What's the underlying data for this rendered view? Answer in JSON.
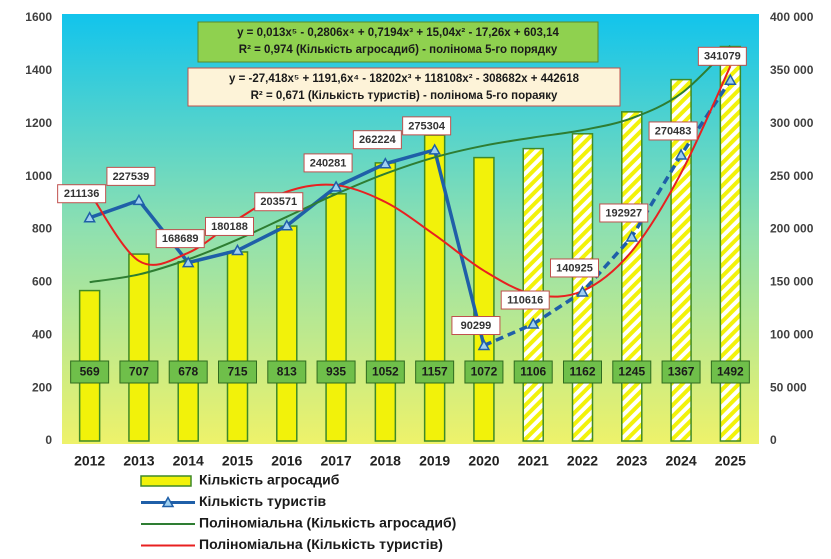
{
  "chart_data": {
    "type": "combo",
    "categories": [
      "2012",
      "2013",
      "2014",
      "2015",
      "2016",
      "2017",
      "2018",
      "2019",
      "2020",
      "2021",
      "2022",
      "2023",
      "2024",
      "2025"
    ],
    "series": [
      {
        "name": "Кількість агросадиб",
        "type": "bar",
        "color": "#f2f20a",
        "values": [
          569,
          707,
          678,
          715,
          813,
          935,
          1052,
          1157,
          1072,
          1106,
          1162,
          1245,
          1367,
          1492
        ]
      },
      {
        "name": "Кількість туристів",
        "type": "line",
        "axis": "y2",
        "color": "#1f5fa8",
        "values": [
          211136,
          227539,
          168689,
          180188,
          203571,
          240281,
          262224,
          275304,
          90299,
          110616,
          140925,
          192927,
          270483,
          341079
        ]
      },
      {
        "name": "Поліноміальна (Кількість агросадиб)",
        "type": "trend",
        "color": "#2e7d32",
        "values": [
          601,
          630,
          687,
          762,
          848,
          934,
          1011,
          1073,
          1117,
          1148,
          1176,
          1221,
          1314,
          1495
        ]
      },
      {
        "name": "Поліноміальна (Кількість туристів)",
        "type": "trend",
        "axis": "y2",
        "color": "#e82020",
        "values": [
          235006,
          170258,
          177947,
          209664,
          235727,
          241900,
          226014,
          195009,
          161062,
          138798,
          141842,
          179472,
          253387,
          354398
        ]
      }
    ],
    "ylim": [
      0,
      1600
    ],
    "yticks": [
      0,
      200,
      400,
      600,
      800,
      1000,
      1200,
      1400,
      1600
    ],
    "y2lim": [
      0,
      400000
    ],
    "y2ticks": [
      0,
      {
        "value": 50000,
        "label": "50 000"
      },
      {
        "value": 100000,
        "label": "100 000"
      },
      {
        "value": 150000,
        "label": "150 000"
      },
      {
        "value": 200000,
        "label": "200 000"
      },
      {
        "value": 250000,
        "label": "250 000"
      },
      {
        "value": 300000,
        "label": "300 000"
      },
      {
        "value": 350000,
        "label": "350 000"
      },
      {
        "value": 400000,
        "label": "400 000"
      }
    ],
    "annotations": [
      [
        "y = 0,013x⁵ - 0,2806x⁴ + 0,7194x³ + 15,04x² - 17,26x + 603,14",
        "R² = 0,974 (Кількість агросадиб)  - полінома 5-го порядку"
      ],
      [
        "y = -27,418x⁵ + 1191,6x⁴ - 18202x³ + 118108x² - 308682x + 442618",
        "R² = 0,671 (Кількість туристів) - полінома 5-го пораяку"
      ]
    ]
  }
}
